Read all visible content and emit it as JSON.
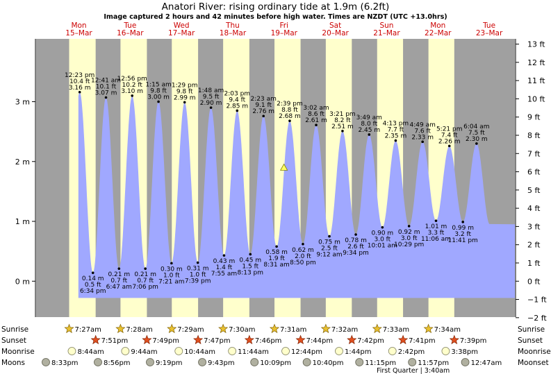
{
  "title": "Anatori River: rising  ordinary tide at 1.9m (6.2ft)",
  "subtitle": "Image captured 2 hours and 42 minutes before high water. Times are NZDT (UTC +13.0hrs)",
  "colors": {
    "night": "#a0a0a0",
    "day": "#ffffcc",
    "water": "#a0a8ff",
    "day_label": "#cc0000",
    "text": "#000000",
    "sun_fill": "#e8c030",
    "sunset_fill": "#e05020",
    "moon_fill": "#ffffcc",
    "moonset_fill": "#b0b0a0",
    "marker": "#ffff66"
  },
  "chart_data": {
    "type": "area",
    "y_units_left": "m",
    "y_units_right": "ft",
    "ylim_m": [
      -0.6,
      4.05
    ],
    "left_ticks": [
      "0 m",
      "1 m",
      "2 m",
      "3 m"
    ],
    "left_tick_values": [
      0,
      1,
      2,
      3
    ],
    "right_ticks": [
      "−2 ft",
      "−1 ft",
      "0 ft",
      "1 ft",
      "2 ft",
      "3 ft",
      "4 ft",
      "5 ft",
      "6 ft",
      "7 ft",
      "8 ft",
      "9 ft",
      "10 ft",
      "11 ft",
      "12 ft",
      "13 ft"
    ],
    "right_tick_values": [
      -2,
      -1,
      0,
      1,
      2,
      3,
      4,
      5,
      6,
      7,
      8,
      9,
      10,
      11,
      12,
      13
    ],
    "x_range_hours": [
      -8,
      216
    ],
    "days": [
      {
        "dow": "Mon",
        "date": "15–Mar"
      },
      {
        "dow": "Tue",
        "date": "16–Mar"
      },
      {
        "dow": "Wed",
        "date": "17–Mar"
      },
      {
        "dow": "Thu",
        "date": "18–Mar"
      },
      {
        "dow": "Fri",
        "date": "19–Mar"
      },
      {
        "dow": "Sat",
        "date": "20–Mar"
      },
      {
        "dow": "Sun",
        "date": "21–Mar"
      },
      {
        "dow": "Mon",
        "date": "22–Mar"
      },
      {
        "dow": "Tue",
        "date": "23–Mar"
      }
    ],
    "tides": [
      {
        "kind": "high",
        "time": "12:23 pm",
        "ft": "10.4 ft",
        "m": "3.16 m",
        "h": 12.38,
        "v": 3.16
      },
      {
        "kind": "low",
        "time": "6:34 pm",
        "ft": "0.5 ft",
        "m": "0.14 m",
        "h": 18.57,
        "v": 0.14
      },
      {
        "kind": "high",
        "time": "12:41 am",
        "ft": "10.1 ft",
        "m": "3.07 m",
        "h": 24.68,
        "v": 3.07
      },
      {
        "kind": "low",
        "time": "6:47 am",
        "ft": "0.7 ft",
        "m": "0.21 m",
        "h": 30.78,
        "v": 0.21
      },
      {
        "kind": "high",
        "time": "12:56 pm",
        "ft": "10.2 ft",
        "m": "3.10 m",
        "h": 36.93,
        "v": 3.1
      },
      {
        "kind": "low",
        "time": "7:06 pm",
        "ft": "0.7 ft",
        "m": "0.21 m",
        "h": 43.1,
        "v": 0.21
      },
      {
        "kind": "high",
        "time": "1:15 am",
        "ft": "9.8 ft",
        "m": "3.00 m",
        "h": 49.25,
        "v": 3.0
      },
      {
        "kind": "low",
        "time": "7:21 am",
        "ft": "1.0 ft",
        "m": "0.30 m",
        "h": 55.35,
        "v": 0.3
      },
      {
        "kind": "high",
        "time": "1:29 pm",
        "ft": "9.8 ft",
        "m": "2.99 m",
        "h": 61.48,
        "v": 2.99
      },
      {
        "kind": "low",
        "time": "7:39 pm",
        "ft": "1.0 ft",
        "m": "0.31 m",
        "h": 67.65,
        "v": 0.31
      },
      {
        "kind": "high",
        "time": "1:48 am",
        "ft": "9.5 ft",
        "m": "2.90 m",
        "h": 73.8,
        "v": 2.9
      },
      {
        "kind": "low",
        "time": "7:55 am",
        "ft": "1.4 ft",
        "m": "0.43 m",
        "h": 79.92,
        "v": 0.43
      },
      {
        "kind": "high",
        "time": "2:03 pm",
        "ft": "9.4 ft",
        "m": "2.85 m",
        "h": 86.05,
        "v": 2.85
      },
      {
        "kind": "low",
        "time": "8:13 pm",
        "ft": "1.5 ft",
        "m": "0.45 m",
        "h": 92.22,
        "v": 0.45
      },
      {
        "kind": "high",
        "time": "2:23 am",
        "ft": "9.1 ft",
        "m": "2.76 m",
        "h": 98.38,
        "v": 2.76
      },
      {
        "kind": "low",
        "time": "8:31 am",
        "ft": "1.9 ft",
        "m": "0.58 m",
        "h": 104.52,
        "v": 0.58
      },
      {
        "kind": "high",
        "time": "2:39 pm",
        "ft": "8.8 ft",
        "m": "2.68 m",
        "h": 110.65,
        "v": 2.68
      },
      {
        "kind": "low",
        "time": "8:50 pm",
        "ft": "2.0 ft",
        "m": "0.62 m",
        "h": 116.83,
        "v": 0.62
      },
      {
        "kind": "high",
        "time": "3:02 am",
        "ft": "8.6 ft",
        "m": "2.61 m",
        "h": 123.03,
        "v": 2.61
      },
      {
        "kind": "low",
        "time": "9:12 am",
        "ft": "2.5 ft",
        "m": "0.75 m",
        "h": 129.2,
        "v": 0.75
      },
      {
        "kind": "high",
        "time": "3:21 pm",
        "ft": "8.2 ft",
        "m": "2.51 m",
        "h": 135.35,
        "v": 2.51
      },
      {
        "kind": "low",
        "time": "9:34 pm",
        "ft": "2.6 ft",
        "m": "0.78 m",
        "h": 141.57,
        "v": 0.78
      },
      {
        "kind": "high",
        "time": "3:49 am",
        "ft": "8.0 ft",
        "m": "2.45 m",
        "h": 147.82,
        "v": 2.45
      },
      {
        "kind": "low",
        "time": "10:01 am",
        "ft": "3.0 ft",
        "m": "0.90 m",
        "h": 154.02,
        "v": 0.9
      },
      {
        "kind": "high",
        "time": "4:13 pm",
        "ft": "7.7 ft",
        "m": "2.35 m",
        "h": 160.22,
        "v": 2.35
      },
      {
        "kind": "low",
        "time": "10:29 pm",
        "ft": "3.0 ft",
        "m": "0.92 m",
        "h": 166.48,
        "v": 0.92
      },
      {
        "kind": "high",
        "time": "4:49 am",
        "ft": "7.6 ft",
        "m": "2.33 m",
        "h": 172.82,
        "v": 2.33
      },
      {
        "kind": "low",
        "time": "11:06 am",
        "ft": "3.3 ft",
        "m": "1.01 m",
        "h": 179.1,
        "v": 1.01
      },
      {
        "kind": "high",
        "time": "5:21 pm",
        "ft": "7.4 ft",
        "m": "2.26 m",
        "h": 185.35,
        "v": 2.26
      },
      {
        "kind": "low",
        "time": "11:41 pm",
        "ft": "3.2 ft",
        "m": "0.99 m",
        "h": 191.68,
        "v": 0.99
      },
      {
        "kind": "high",
        "time": "6:04 am",
        "ft": "7.5 ft",
        "m": "2.30 m",
        "h": 198.07,
        "v": 2.3
      }
    ],
    "current": {
      "h": 107.95,
      "v": 1.9
    },
    "sunrise_h": [
      7.45,
      31.47,
      55.48,
      79.5,
      103.52,
      127.53,
      151.55,
      175.57
    ],
    "sunset_h": [
      19.85,
      43.82,
      67.78,
      91.77,
      115.73,
      139.7,
      163.68,
      187.65
    ],
    "sunrise": [
      "7:27am",
      "7:28am",
      "7:29am",
      "7:30am",
      "7:31am",
      "7:32am",
      "7:33am",
      "7:34am"
    ],
    "sunset": [
      "7:51pm",
      "7:49pm",
      "7:47pm",
      "7:46pm",
      "7:44pm",
      "7:42pm",
      "7:41pm",
      "7:39pm"
    ],
    "moonrise": [
      "8:44am",
      "9:44am",
      "10:44am",
      "11:44am",
      "12:44pm",
      "1:44pm",
      "2:42pm",
      "3:38pm"
    ],
    "moonrise_h": [
      8.73,
      33.73,
      58.73,
      83.73,
      108.73,
      133.73,
      158.7,
      183.63
    ],
    "moonset": [
      "8:33pm",
      "8:56pm",
      "9:19pm",
      "9:43pm",
      "10:09pm",
      "10:40pm",
      "11:15pm",
      "11:57pm",
      "12:47am"
    ],
    "moonset_h": [
      -3.45,
      20.93,
      45.32,
      69.72,
      94.15,
      118.67,
      143.25,
      167.95,
      192.78
    ],
    "row_labels": [
      "Sunrise",
      "Sunset",
      "Moonrise",
      "Moonset"
    ],
    "row_labels_left": [
      "Sunrise",
      "Sunset",
      "Moonrise",
      "Moons"
    ],
    "moon_phase_note": "First Quarter | 3:40am",
    "moon_phase_h": 171.67
  }
}
